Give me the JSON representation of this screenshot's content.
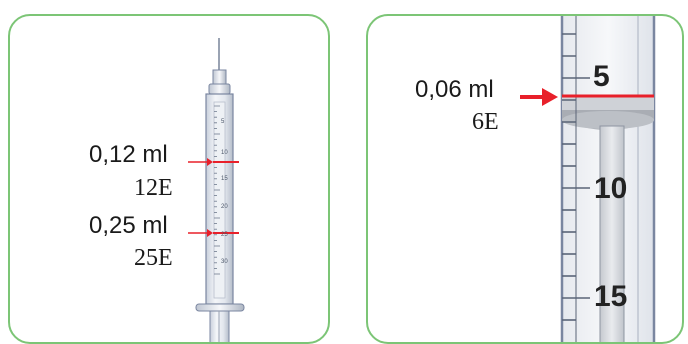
{
  "left_panel": {
    "callouts": [
      {
        "volume": "0,12 ml",
        "units": "12E"
      },
      {
        "volume": "0,25 ml",
        "units": "25E"
      }
    ],
    "scale_labels": [
      "5",
      "10",
      "15",
      "20",
      "25",
      "30"
    ]
  },
  "right_panel": {
    "callout": {
      "volume": "0,06 ml",
      "units": "6E"
    },
    "scale_labels": [
      "5",
      "10",
      "15"
    ]
  },
  "colors": {
    "border": "#7cc576",
    "marker": "#e8202a",
    "barrel_edge": "#7a86a0"
  }
}
